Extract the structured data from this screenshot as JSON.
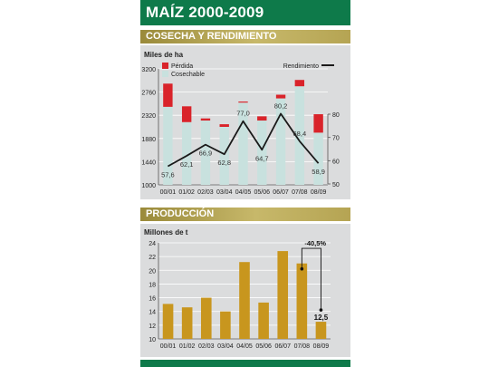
{
  "header": {
    "title": "MAÍZ 2000-2009"
  },
  "section1": {
    "title": "COSECHA Y RENDIMIENTO"
  },
  "section2": {
    "title": "PRODUCCIÓN"
  },
  "colors": {
    "brand_green": "#0e7a4a",
    "perdida_red": "#d9232a",
    "cosechable_bar": "#c8e1de",
    "line": "#1a1a1a",
    "produccion_bar": "#c8961e"
  },
  "chart_data": [
    {
      "type": "bar",
      "ylabel": "Miles de ha",
      "categories": [
        "00/01",
        "01/02",
        "02/03",
        "03/04",
        "04/05",
        "05/06",
        "06/07",
        "07/08",
        "08/09"
      ],
      "ylim": [
        1000,
        3200
      ],
      "yticks": [
        1000,
        1440,
        1880,
        2320,
        2760,
        3200
      ],
      "legend": [
        "Pérdida",
        "Cosechable"
      ],
      "series": [
        {
          "name": "Cosechable",
          "values": [
            2480,
            2190,
            2220,
            2100,
            2560,
            2220,
            2640,
            2870,
            1990
          ]
        },
        {
          "name": "Pérdida",
          "values": [
            440,
            300,
            40,
            50,
            20,
            80,
            70,
            120,
            350
          ]
        }
      ],
      "line_series": {
        "name": "Rendimiento",
        "values": [
          57.6,
          62.1,
          66.9,
          62.8,
          77.0,
          64.7,
          80.2,
          68.4,
          58.9
        ],
        "labels": [
          "57,6",
          "62,1",
          "66,9",
          "62,8",
          "77,0",
          "64,7",
          "80,2",
          "68,4",
          "58,9"
        ],
        "ylim": [
          50,
          80
        ],
        "yticks": [
          50,
          60,
          70,
          80
        ]
      },
      "legend_placement": "top"
    },
    {
      "type": "bar",
      "ylabel": "Millones de t",
      "categories": [
        "00/01",
        "01/02",
        "02/03",
        "03/04",
        "04/05",
        "05/06",
        "06/07",
        "07/08",
        "08/09"
      ],
      "ylim": [
        10,
        24
      ],
      "yticks": [
        10,
        12,
        14,
        16,
        18,
        20,
        22,
        24
      ],
      "series": [
        {
          "values": [
            15.1,
            14.6,
            16.0,
            14.0,
            21.2,
            15.3,
            22.8,
            21.0,
            12.5
          ]
        }
      ],
      "annotation": {
        "change": "-40,5%",
        "last_value": "12,5"
      }
    }
  ]
}
